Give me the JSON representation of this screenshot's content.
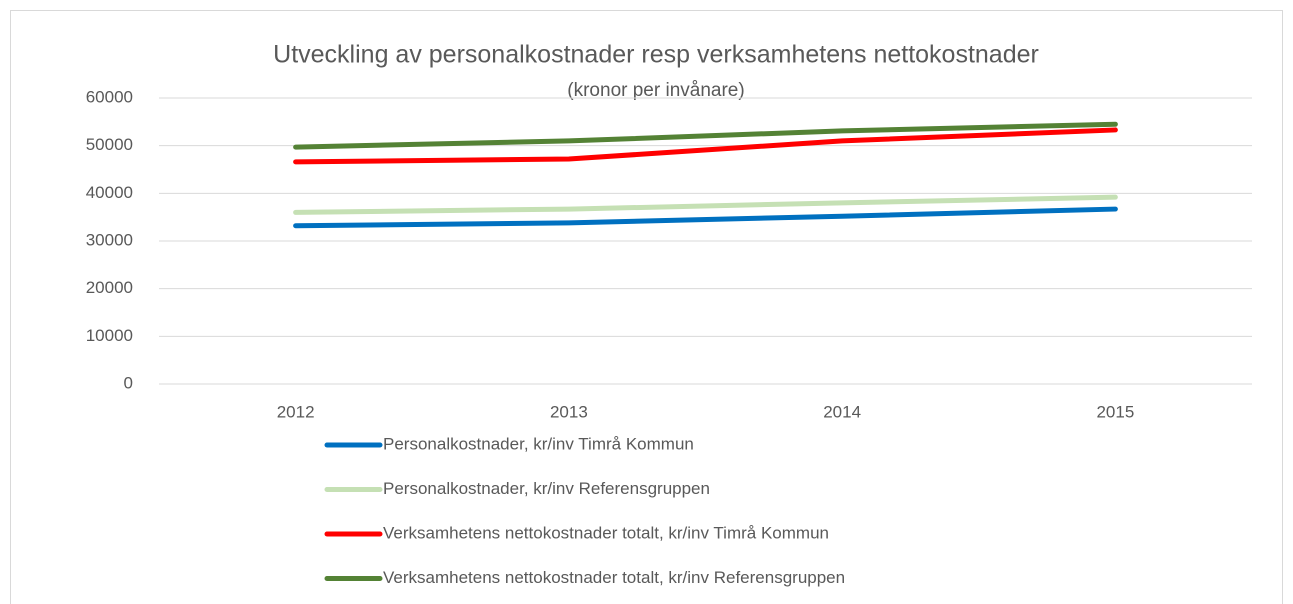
{
  "chart_data": {
    "type": "line",
    "title": "Utveckling av personalkostnader resp verksamhetens nettokostnader",
    "subtitle": "(kronor per invånare)",
    "categories": [
      "2012",
      "2013",
      "2014",
      "2015"
    ],
    "series": [
      {
        "name": "Personalkostnader, kr/inv Timrå Kommun",
        "color": "#0070c0",
        "values": [
          33200,
          33800,
          35200,
          36700
        ]
      },
      {
        "name": "Personalkostnader, kr/inv Referensgruppen",
        "color": "#c5e0b4",
        "values": [
          36000,
          36700,
          38000,
          39200
        ]
      },
      {
        "name": "Verksamhetens nettokostnader totalt, kr/inv Timrå Kommun",
        "color": "#ff0000",
        "values": [
          46600,
          47200,
          51000,
          53300
        ]
      },
      {
        "name": "Verksamhetens nettokostnader totalt, kr/inv Referensgruppen",
        "color": "#548235",
        "values": [
          49700,
          51000,
          53100,
          54500
        ]
      }
    ],
    "ylim": [
      0,
      60000
    ],
    "yticks": [
      0,
      10000,
      20000,
      30000,
      40000,
      50000,
      60000
    ],
    "grid": true,
    "legend": "bottom"
  }
}
